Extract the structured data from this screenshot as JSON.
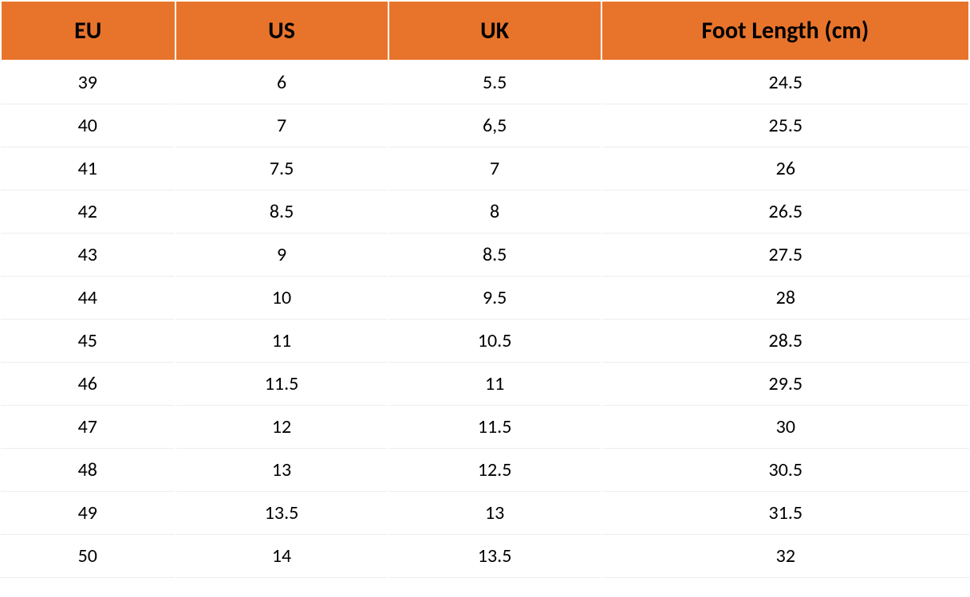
{
  "table": {
    "type": "table",
    "header_bg_color": "#e8742c",
    "header_text_color": "#000000",
    "header_fontsize": 30,
    "header_fontweight": 700,
    "cell_text_color": "#000000",
    "cell_fontsize": 24,
    "row_bg_color": "#ffffff",
    "row_border_color": "#eeeeee",
    "columns": [
      {
        "key": "eu",
        "label": "EU",
        "width_pct": 18
      },
      {
        "key": "us",
        "label": "US",
        "width_pct": 22
      },
      {
        "key": "uk",
        "label": "UK",
        "width_pct": 22
      },
      {
        "key": "len",
        "label": "Foot Length (cm)",
        "width_pct": 38
      }
    ],
    "rows": [
      {
        "eu": "39",
        "us": "6",
        "uk": "5.5",
        "len": "24.5"
      },
      {
        "eu": "40",
        "us": "7",
        "uk": "6,5",
        "len": "25.5"
      },
      {
        "eu": "41",
        "us": "7.5",
        "uk": "7",
        "len": "26"
      },
      {
        "eu": "42",
        "us": "8.5",
        "uk": "8",
        "len": "26.5"
      },
      {
        "eu": "43",
        "us": "9",
        "uk": "8.5",
        "len": "27.5"
      },
      {
        "eu": "44",
        "us": "10",
        "uk": "9.5",
        "len": "28"
      },
      {
        "eu": "45",
        "us": "11",
        "uk": "10.5",
        "len": "28.5"
      },
      {
        "eu": "46",
        "us": "11.5",
        "uk": "11",
        "len": "29.5"
      },
      {
        "eu": "47",
        "us": "12",
        "uk": "11.5",
        "len": "30"
      },
      {
        "eu": "48",
        "us": "13",
        "uk": "12.5",
        "len": "30.5"
      },
      {
        "eu": "49",
        "us": "13.5",
        "uk": "13",
        "len": "31.5"
      },
      {
        "eu": "50",
        "us": "14",
        "uk": "13.5",
        "len": "32"
      }
    ]
  }
}
